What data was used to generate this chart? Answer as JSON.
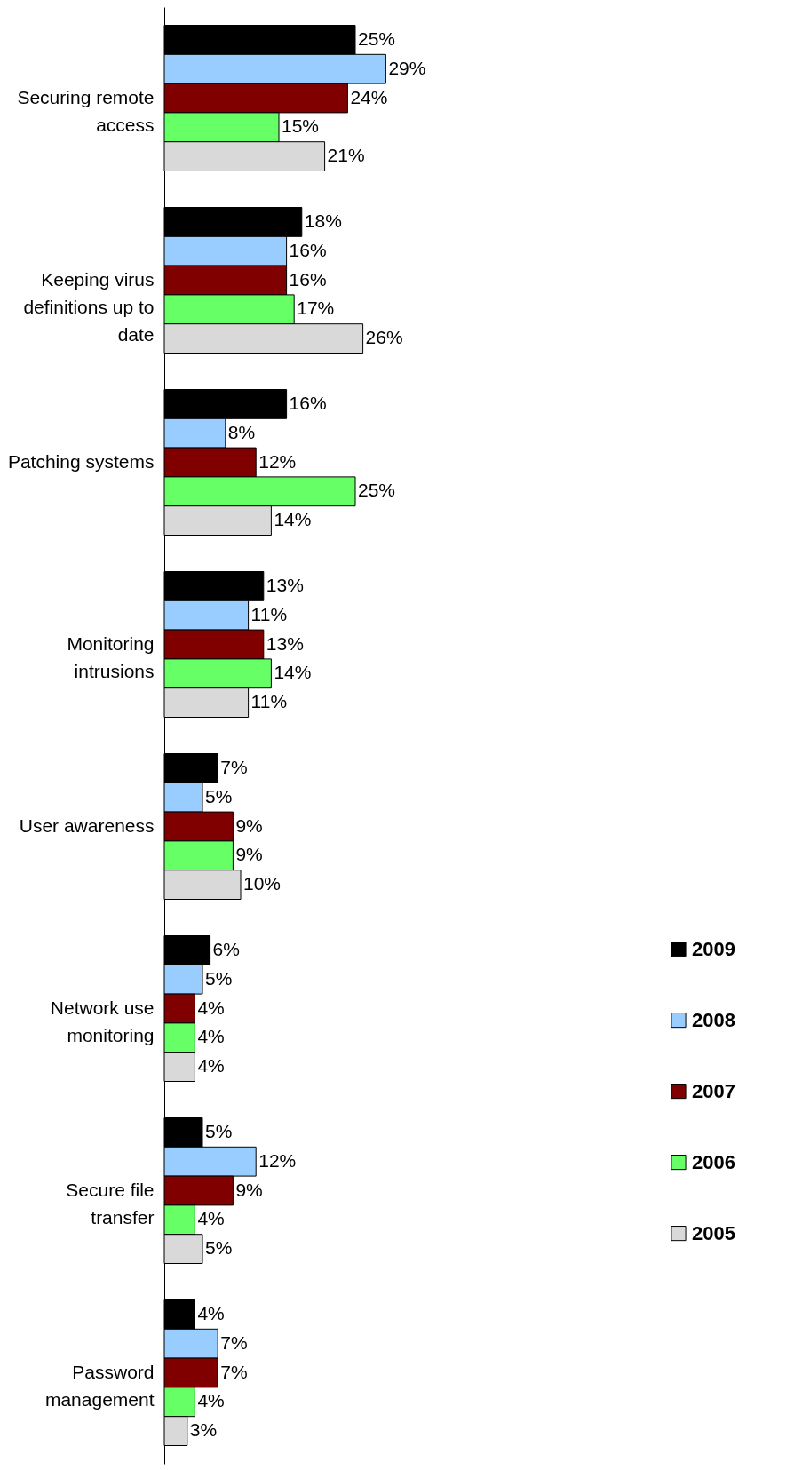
{
  "chart_data": {
    "type": "bar",
    "orientation": "horizontal",
    "categories": [
      "Securing remote access",
      "Keeping virus definitions up to date",
      "Patching systems",
      "Monitoring intrusions",
      "User awareness",
      "Network use monitoring",
      "Secure file transfer",
      "Password management"
    ],
    "tick_labels": "y",
    "legend": "right",
    "series": [
      {
        "name": "2009",
        "color": "#000000",
        "values": [
          25,
          18,
          16,
          13,
          7,
          6,
          5,
          4
        ],
        "value_labels": [
          "25%",
          "18%",
          "16%",
          "13%",
          "7%",
          "6%",
          "5%",
          "4%"
        ]
      },
      {
        "name": "2008",
        "color": "#99ccff",
        "values": [
          29,
          16,
          8,
          11,
          5,
          5,
          12,
          7
        ],
        "value_labels": [
          "29%",
          "16%",
          "8%",
          "11%",
          "5%",
          "5%",
          "12%",
          "7%"
        ]
      },
      {
        "name": "2007",
        "color": "#800000",
        "values": [
          24,
          16,
          12,
          13,
          9,
          4,
          9,
          7
        ],
        "value_labels": [
          "24%",
          "16%",
          "12%",
          "13%",
          "9%",
          "4%",
          "9%",
          "7%"
        ]
      },
      {
        "name": "2006",
        "color": "#66ff66",
        "values": [
          15,
          17,
          25,
          14,
          9,
          4,
          4,
          4
        ],
        "value_labels": [
          "15%",
          "17%",
          "25%",
          "14%",
          "9%",
          "4%",
          "4%",
          "4%"
        ]
      },
      {
        "name": "2005",
        "color": "#d9d9d9",
        "values": [
          21,
          26,
          14,
          11,
          10,
          4,
          5,
          3
        ],
        "value_labels": [
          "21%",
          "26%",
          "14%",
          "11%",
          "10%",
          "4%",
          "5%",
          "3%"
        ]
      }
    ]
  }
}
